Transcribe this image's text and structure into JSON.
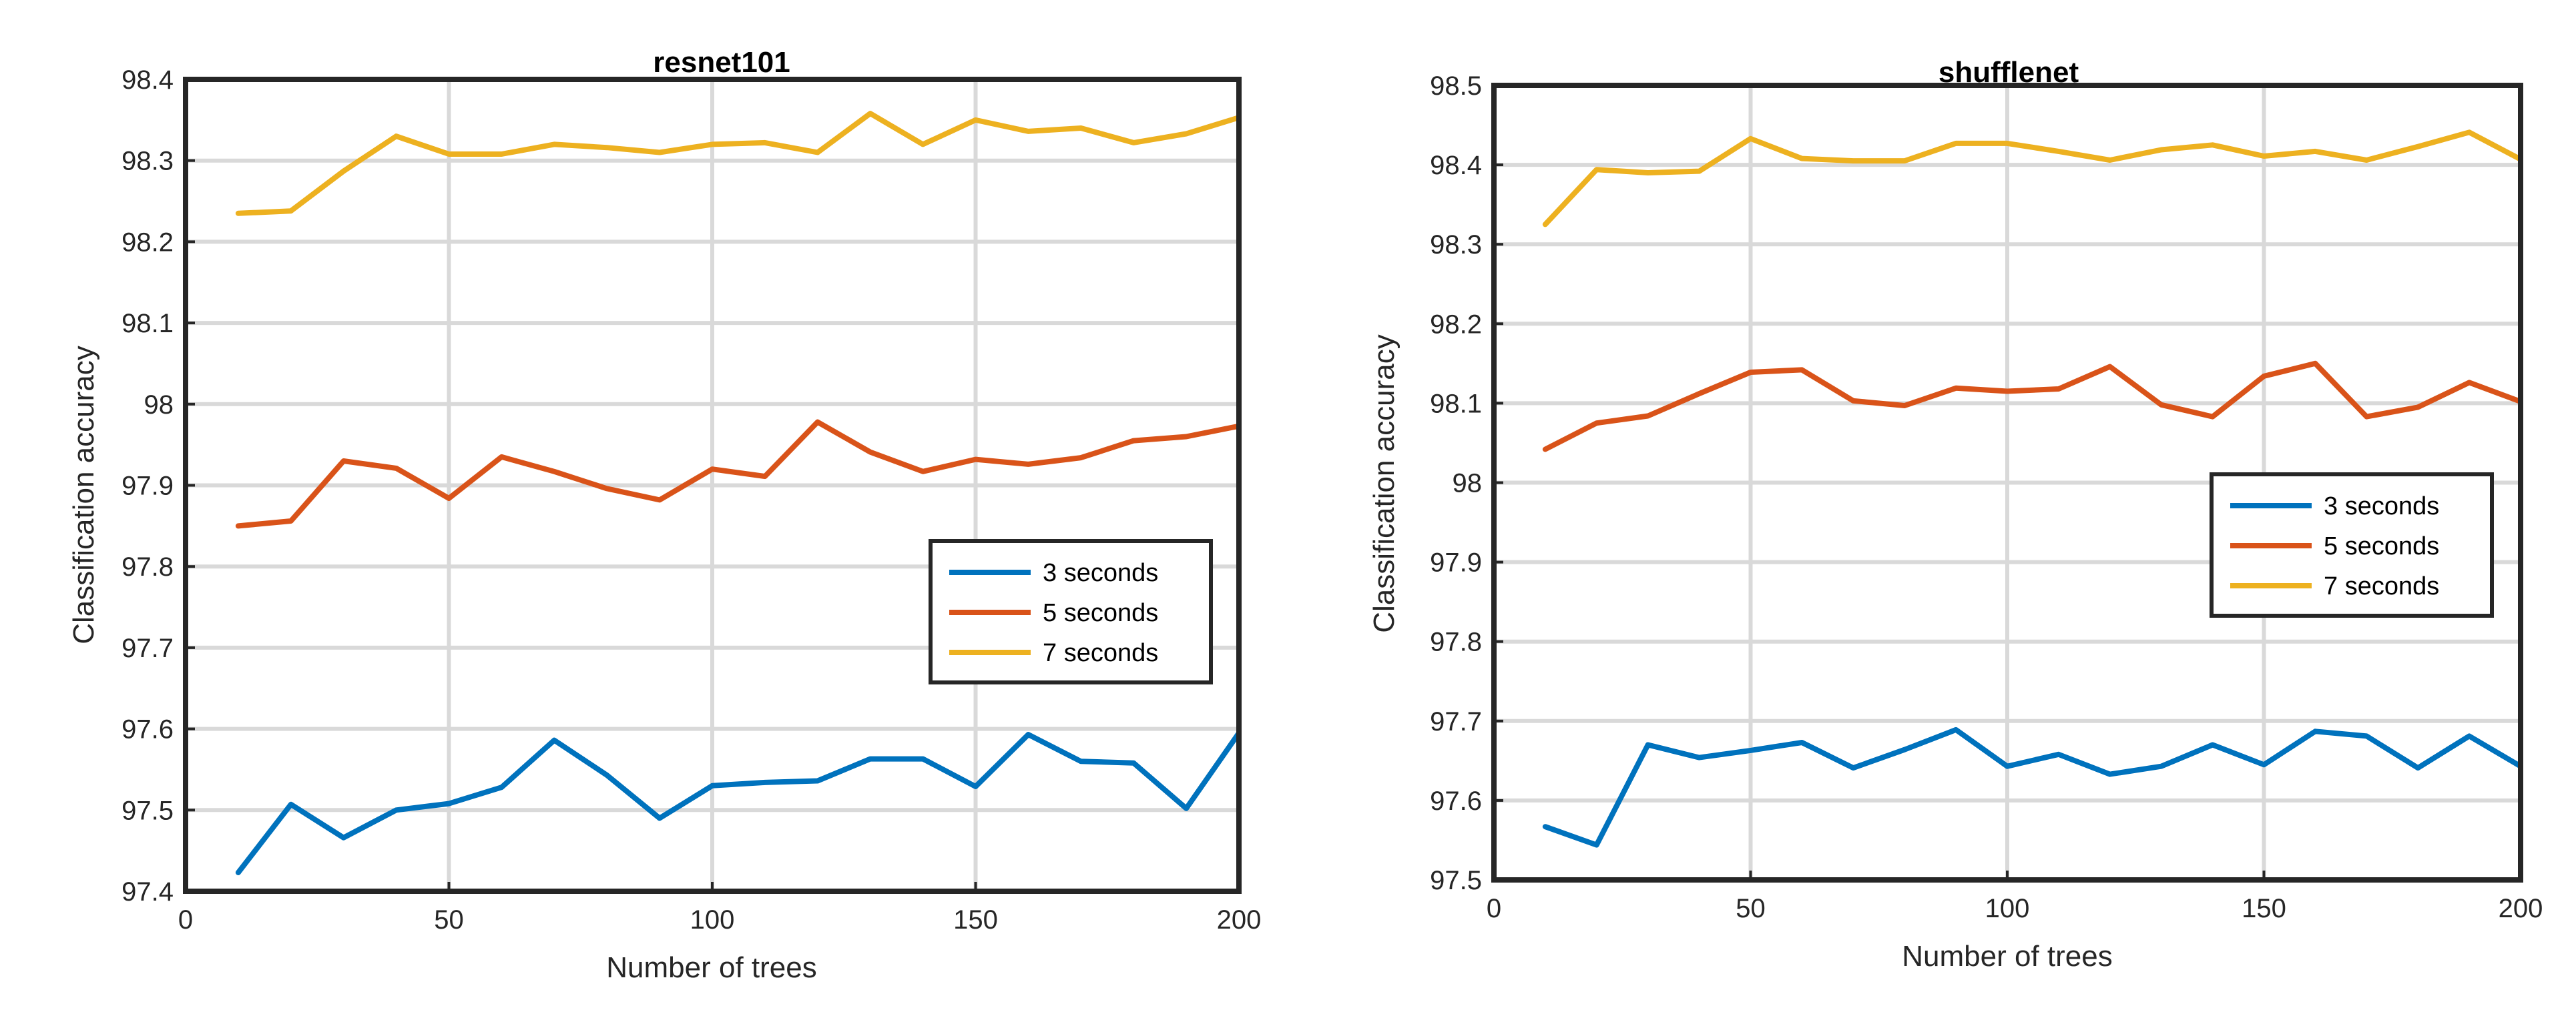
{
  "chart_data": [
    {
      "type": "line",
      "title": "resnet101",
      "xlabel": "Number of trees",
      "ylabel": "Classification accuracy",
      "xlim": [
        0,
        200
      ],
      "ylim": [
        97.4,
        98.4
      ],
      "xticks": [
        "0",
        "50",
        "100",
        "150",
        "200"
      ],
      "yticks": [
        "97.4",
        "97.5",
        "97.6",
        "97.7",
        "97.8",
        "97.9",
        "98",
        "98.1",
        "98.2",
        "98.3",
        "98.4"
      ],
      "grid": true,
      "legend_position": "middle-right",
      "x": [
        10,
        20,
        30,
        40,
        50,
        60,
        70,
        80,
        90,
        100,
        110,
        120,
        130,
        140,
        150,
        160,
        170,
        180,
        190,
        200
      ],
      "series": [
        {
          "name": "3 seconds",
          "color": "#0072BD",
          "values": [
            97.423,
            97.507,
            97.466,
            97.5,
            97.508,
            97.528,
            97.586,
            97.543,
            97.49,
            97.53,
            97.534,
            97.536,
            97.563,
            97.563,
            97.529,
            97.593,
            97.56,
            97.558,
            97.502,
            97.595
          ]
        },
        {
          "name": "5 seconds",
          "color": "#D95319",
          "values": [
            97.85,
            97.856,
            97.93,
            97.921,
            97.884,
            97.935,
            97.917,
            97.896,
            97.882,
            97.92,
            97.911,
            97.978,
            97.941,
            97.917,
            97.932,
            97.926,
            97.934,
            97.955,
            97.96,
            97.973
          ]
        },
        {
          "name": "7 seconds",
          "color": "#EDB120",
          "values": [
            98.235,
            98.238,
            98.287,
            98.33,
            98.308,
            98.308,
            98.32,
            98.316,
            98.31,
            98.32,
            98.322,
            98.31,
            98.358,
            98.32,
            98.35,
            98.336,
            98.34,
            98.322,
            98.333,
            98.353
          ]
        }
      ]
    },
    {
      "type": "line",
      "title": "shufflenet",
      "xlabel": "Number of trees",
      "ylabel": "Classification accuracy",
      "xlim": [
        0,
        200
      ],
      "ylim": [
        97.5,
        98.5
      ],
      "xticks": [
        "0",
        "50",
        "100",
        "150",
        "200"
      ],
      "yticks": [
        "97.5",
        "97.6",
        "97.7",
        "97.8",
        "97.9",
        "98",
        "98.1",
        "98.2",
        "98.3",
        "98.4",
        "98.5"
      ],
      "grid": true,
      "legend_position": "middle-right",
      "x": [
        10,
        20,
        30,
        40,
        50,
        60,
        70,
        80,
        90,
        100,
        110,
        120,
        130,
        140,
        150,
        160,
        170,
        180,
        190,
        200
      ],
      "series": [
        {
          "name": "3 seconds",
          "color": "#0072BD",
          "values": [
            97.567,
            97.544,
            97.67,
            97.654,
            97.663,
            97.673,
            97.641,
            97.664,
            97.689,
            97.643,
            97.658,
            97.633,
            97.643,
            97.67,
            97.645,
            97.687,
            97.681,
            97.641,
            97.681,
            97.643
          ]
        },
        {
          "name": "5 seconds",
          "color": "#D95319",
          "values": [
            98.042,
            98.075,
            98.084,
            98.112,
            98.139,
            98.142,
            98.103,
            98.097,
            98.119,
            98.115,
            98.118,
            98.146,
            98.098,
            98.083,
            98.134,
            98.15,
            98.083,
            98.095,
            98.126,
            98.102
          ]
        },
        {
          "name": "7 seconds",
          "color": "#EDB120",
          "values": [
            98.325,
            98.394,
            98.39,
            98.392,
            98.433,
            98.408,
            98.405,
            98.405,
            98.427,
            98.427,
            98.417,
            98.406,
            98.419,
            98.425,
            98.411,
            98.417,
            98.406,
            98.423,
            98.441,
            98.407
          ]
        }
      ]
    }
  ]
}
